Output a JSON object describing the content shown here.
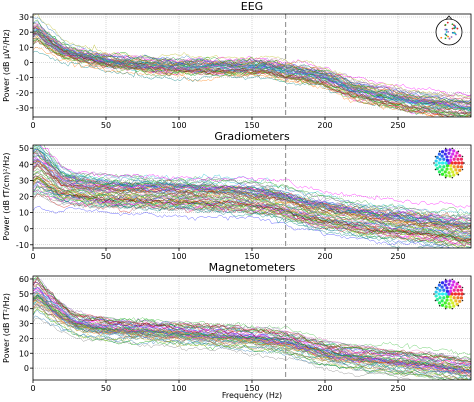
{
  "chart_data": [
    {
      "type": "line",
      "title": "EEG",
      "xlabel": "",
      "ylabel": "Power (dB µV²/Hz)",
      "xlim": [
        0,
        300
      ],
      "ylim": [
        -36,
        32
      ],
      "xticks": [
        0,
        50,
        100,
        150,
        200,
        250
      ],
      "yticks": [
        -30,
        -20,
        -10,
        0,
        10,
        20,
        30
      ],
      "vline_x": 173,
      "grid": true,
      "channel_count": 60,
      "spread": 2.5,
      "mean_curve": {
        "x": [
          0,
          3,
          10,
          20,
          30,
          50,
          80,
          110,
          140,
          160,
          175,
          190,
          200,
          220,
          240,
          260,
          280,
          298
        ],
        "y": [
          20,
          21,
          15,
          8,
          5,
          1,
          -2,
          -3,
          -3,
          -3,
          -6,
          -8,
          -10,
          -18,
          -22,
          -26,
          -28,
          -30
        ]
      },
      "sensor_inset": "head-outline-sensor-map"
    },
    {
      "type": "line",
      "title": "Gradiometers",
      "xlabel": "",
      "ylabel": "Power (dB fT/cm)²/Hz)",
      "xlim": [
        0,
        300
      ],
      "ylim": [
        -12,
        52
      ],
      "xticks": [
        0,
        50,
        100,
        150,
        200,
        250
      ],
      "yticks": [
        -10,
        0,
        10,
        20,
        30,
        40,
        50
      ],
      "vline_x": 173,
      "grid": true,
      "channel_count": 80,
      "spread": 5,
      "mean_curve": {
        "x": [
          0,
          3,
          10,
          20,
          40,
          60,
          100,
          140,
          160,
          175,
          190,
          210,
          230,
          250,
          270,
          298
        ],
        "y": [
          36,
          38,
          33,
          26,
          23,
          22,
          21,
          20,
          18,
          15,
          11,
          8,
          5,
          3,
          1,
          -2
        ]
      },
      "sensor_inset": "colored-sensor-map"
    },
    {
      "type": "line",
      "title": "Magnetometers",
      "xlabel": "Frequency (Hz)",
      "ylabel": "Power (dB fT²/Hz)",
      "xlim": [
        0,
        300
      ],
      "ylim": [
        -8,
        62
      ],
      "xticks": [
        0,
        50,
        100,
        150,
        200,
        250
      ],
      "yticks": [
        0,
        10,
        20,
        30,
        40,
        50,
        60
      ],
      "vline_x": 173,
      "grid": true,
      "channel_count": 60,
      "spread": 4,
      "mean_curve": {
        "x": [
          0,
          3,
          10,
          20,
          30,
          50,
          80,
          110,
          140,
          160,
          175,
          190,
          200,
          220,
          240,
          260,
          280,
          298
        ],
        "y": [
          48,
          50,
          44,
          36,
          30,
          27,
          25,
          23,
          21,
          19,
          17,
          13,
          10,
          7,
          5,
          3,
          1,
          -2
        ]
      },
      "sensor_inset": "colored-sensor-map"
    }
  ],
  "colors": {
    "vline": "#999999",
    "grid": "#b0b0b0",
    "sensor_dots": "#222222"
  }
}
